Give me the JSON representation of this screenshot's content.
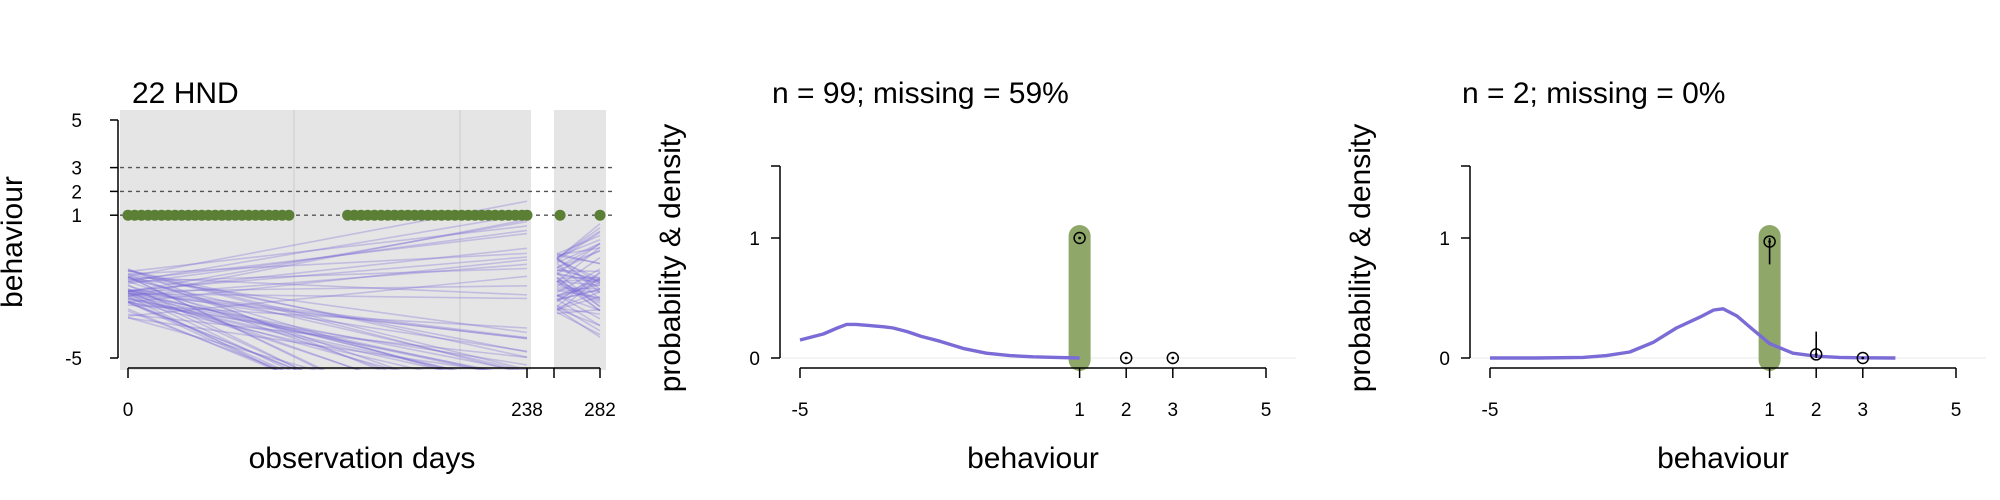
{
  "chart_data": [
    {
      "type": "line",
      "title": "22 HND",
      "xlabel": "observation days",
      "ylabel": "behaviour",
      "ylim": [
        -5,
        5
      ],
      "y_ticks": [
        -5,
        1,
        2,
        3,
        5
      ],
      "x_ticks": [
        0,
        238,
        282
      ],
      "x_segments": [
        [
          0,
          238
        ],
        [
          254,
          282
        ]
      ],
      "reference_lines": [
        1,
        2,
        3
      ],
      "observations": {
        "value": 1,
        "days": [
          0,
          4,
          8,
          12,
          16,
          20,
          24,
          28,
          32,
          36,
          40,
          44,
          48,
          52,
          56,
          60,
          64,
          68,
          72,
          76,
          80,
          84,
          88,
          92,
          96,
          131,
          135,
          139,
          143,
          147,
          151,
          155,
          159,
          163,
          167,
          171,
          175,
          179,
          183,
          187,
          191,
          195,
          199,
          203,
          207,
          211,
          215,
          219,
          223,
          227,
          231,
          235,
          238,
          256,
          282
        ]
      },
      "series_count": 60
    },
    {
      "type": "line",
      "title": "n = 99; missing = 59%",
      "xlabel": "behaviour",
      "ylabel": "probability & density",
      "xlim": [
        -5,
        5
      ],
      "ylim": [
        0,
        1.5
      ],
      "x_ticks": [
        -5,
        1,
        2,
        3,
        5
      ],
      "y_ticks": [
        0,
        1
      ],
      "highlight_value": 1,
      "density": {
        "x": [
          -5,
          -4.5,
          -4.2,
          -4,
          -3.8,
          -3.5,
          -3.2,
          -3,
          -2.7,
          -2.4,
          -2,
          -1.5,
          -1,
          -0.5,
          0,
          0.5,
          1
        ],
        "y": [
          0.15,
          0.2,
          0.25,
          0.28,
          0.28,
          0.27,
          0.26,
          0.25,
          0.22,
          0.18,
          0.14,
          0.08,
          0.04,
          0.02,
          0.01,
          0.005,
          0
        ]
      },
      "points": [
        {
          "x": 1,
          "y": 1.0
        },
        {
          "x": 2,
          "y": 0.0
        },
        {
          "x": 3,
          "y": 0.0
        }
      ]
    },
    {
      "type": "line",
      "title": "n = 2; missing = 0%",
      "xlabel": "behaviour",
      "ylabel": "probability & density",
      "xlim": [
        -5,
        5
      ],
      "ylim": [
        0,
        1.5
      ],
      "x_ticks": [
        -5,
        1,
        2,
        3,
        5
      ],
      "y_ticks": [
        0,
        1
      ],
      "highlight_value": 1,
      "density": {
        "x": [
          -5,
          -4,
          -3,
          -2.5,
          -2,
          -1.5,
          -1,
          -0.5,
          -0.2,
          0,
          0.3,
          0.6,
          1,
          1.5,
          2,
          2.5,
          3,
          3.7
        ],
        "y": [
          0,
          0,
          0.005,
          0.02,
          0.05,
          0.13,
          0.25,
          0.34,
          0.4,
          0.41,
          0.35,
          0.25,
          0.12,
          0.04,
          0.015,
          0.005,
          0.002,
          0
        ]
      },
      "points": [
        {
          "x": 1,
          "y": 0.97,
          "err": [
            0.78,
            1.0
          ]
        },
        {
          "x": 2,
          "y": 0.03,
          "err": [
            0.0,
            0.22
          ]
        },
        {
          "x": 3,
          "y": 0.0
        }
      ]
    }
  ]
}
